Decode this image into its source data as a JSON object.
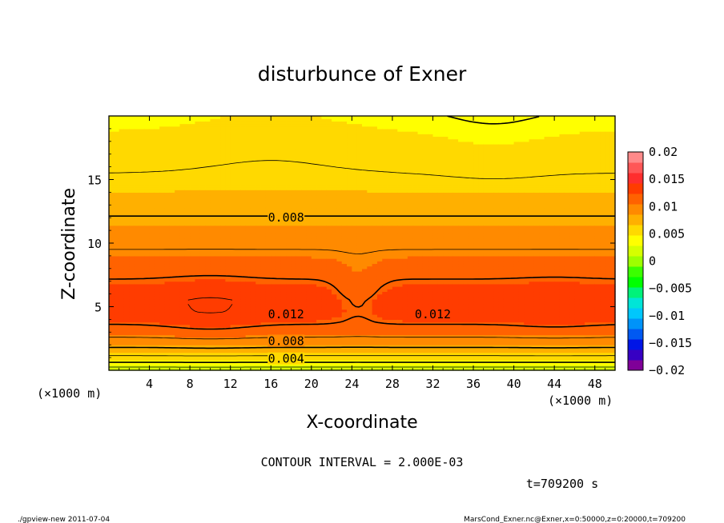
{
  "chart_data": {
    "type": "heatmap",
    "title": "disturbunce of Exner",
    "xlabel": "X-coordinate",
    "ylabel": "Z-coordinate",
    "x_unit": "(×1000 m)",
    "y_unit": "(×1000 m)",
    "xlim": [
      0,
      50
    ],
    "ylim": [
      0,
      20
    ],
    "x_ticks": [
      "4",
      "8",
      "12",
      "16",
      "20",
      "24",
      "28",
      "32",
      "36",
      "40",
      "44",
      "48"
    ],
    "x_tick_values": [
      4,
      8,
      12,
      16,
      20,
      24,
      28,
      32,
      36,
      40,
      44,
      48
    ],
    "y_ticks": [
      "5",
      "10",
      "15"
    ],
    "y_tick_values": [
      5,
      10,
      15
    ],
    "contour_interval_text": "CONTOUR INTERVAL = 2.000E-03",
    "time_label": "t=709200 s",
    "contour_labels": [
      {
        "text": "0.008",
        "x": 17.5,
        "z": 12.0
      },
      {
        "text": "0.012",
        "x": 17.5,
        "z": 4.4
      },
      {
        "text": "0.012",
        "x": 32.0,
        "z": 4.4
      },
      {
        "text": "0.008",
        "x": 17.5,
        "z": 2.3
      },
      {
        "text": "0.004",
        "x": 17.5,
        "z": 0.9
      }
    ],
    "profile_z_to_value": [
      [
        0.0,
        0.0005
      ],
      [
        0.5,
        0.0035
      ],
      [
        1.0,
        0.0055
      ],
      [
        1.6,
        0.0075
      ],
      [
        2.2,
        0.009
      ],
      [
        3.0,
        0.011
      ],
      [
        3.8,
        0.0123
      ],
      [
        4.6,
        0.0131
      ],
      [
        5.5,
        0.0133
      ],
      [
        6.5,
        0.0126
      ],
      [
        7.5,
        0.0117
      ],
      [
        8.5,
        0.0108
      ],
      [
        9.5,
        0.01
      ],
      [
        10.5,
        0.0093
      ],
      [
        11.5,
        0.0085
      ],
      [
        12.5,
        0.0077
      ],
      [
        13.5,
        0.007
      ],
      [
        14.5,
        0.0064
      ],
      [
        15.5,
        0.006
      ],
      [
        16.5,
        0.0057
      ],
      [
        17.5,
        0.0053
      ],
      [
        18.5,
        0.0049
      ],
      [
        19.5,
        0.0045
      ],
      [
        20.0,
        0.0043
      ]
    ],
    "colorbar": {
      "labels": [
        "0.02",
        "0.015",
        "0.01",
        "0.005",
        "0",
        "−0.005",
        "−0.01",
        "−0.015",
        "−0.02"
      ],
      "label_values": [
        0.02,
        0.015,
        0.01,
        0.005,
        0,
        -0.005,
        -0.01,
        -0.015,
        -0.02
      ],
      "min": -0.02,
      "max": 0.02,
      "colors_low_to_high": [
        "#7f0098",
        "#3700c3",
        "#0015e6",
        "#0059f2",
        "#0093f9",
        "#00c7fc",
        "#00e5d7",
        "#00f27a",
        "#00ff00",
        "#3bff00",
        "#9dff00",
        "#d6ff00",
        "#ffff00",
        "#ffd900",
        "#ffb000",
        "#ff8a00",
        "#ff6200",
        "#ff3c00",
        "#ff2e2e",
        "#ff5757",
        "#ff8a8a"
      ]
    }
  },
  "footer": {
    "left": "./gpview-new   2011-07-04",
    "right": "MarsCond_Exner.nc@Exner,x=0:50000,z=0:20000,t=709200"
  }
}
